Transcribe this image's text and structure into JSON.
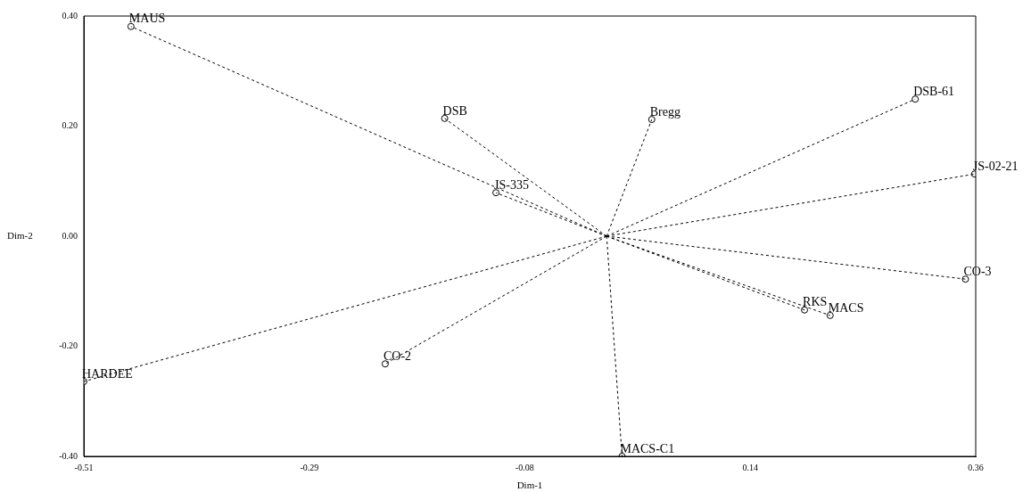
{
  "chart_data": {
    "type": "scatter",
    "xlabel": "Dim-1",
    "ylabel": "Dim-2",
    "xlim": [
      -0.51,
      0.36
    ],
    "xticks": [
      -0.51,
      -0.29,
      -0.08,
      0.14,
      0.36
    ],
    "ylim": [
      -0.4,
      0.4
    ],
    "yticks": [
      {
        "value": -0.4,
        "label": "-0.40"
      },
      {
        "value": -0.2,
        "label": "-0.20"
      },
      {
        "value": 0,
        "label": "0.00"
      },
      {
        "value": 0.2,
        "label": "0.20"
      },
      {
        "value": 0.4,
        "label": "0.40"
      }
    ],
    "grid": false,
    "legend": false,
    "series": [
      {
        "type": "line",
        "color": "#000000",
        "line_style": "dashed",
        "marker": "none",
        "x": [
          0,
          -0.464,
          null,
          0,
          -0.158,
          null,
          0,
          0.044,
          null,
          0,
          0.301,
          null,
          0,
          0.359,
          null,
          0,
          -0.108,
          null,
          0,
          0.35,
          null,
          0,
          0.193,
          null,
          0,
          0.218,
          null,
          0,
          -0.216,
          null,
          0,
          -0.51,
          null,
          0,
          0.015
        ],
        "values": [
          0,
          0.381,
          null,
          0,
          0.214,
          null,
          0,
          0.212,
          null,
          0,
          0.249,
          null,
          0,
          0.113,
          null,
          0,
          0.079,
          null,
          0,
          -0.078,
          null,
          0,
          -0.134,
          null,
          0,
          -0.144,
          null,
          0,
          -0.232,
          null,
          0,
          -0.264,
          null,
          0,
          -0.4
        ]
      },
      {
        "type": "scatter",
        "color": "#000000",
        "marker": "circle",
        "x": [
          -0.464,
          -0.158,
          0.044,
          0.301,
          0.359,
          -0.108,
          0.35,
          0.193,
          0.218,
          -0.216,
          -0.51,
          0.015
        ],
        "values": [
          0.381,
          0.214,
          0.212,
          0.249,
          0.113,
          0.079,
          -0.078,
          -0.134,
          -0.144,
          -0.232,
          -0.264,
          -0.4
        ],
        "value_labels": [
          "MAUS",
          "DSB",
          "Bregg",
          "DSB-61",
          "JS-02-21",
          "JS-335",
          "CO-3",
          "RKS",
          "MACS",
          "CO-2",
          "HARDEE",
          "MACS-C1"
        ]
      }
    ]
  }
}
